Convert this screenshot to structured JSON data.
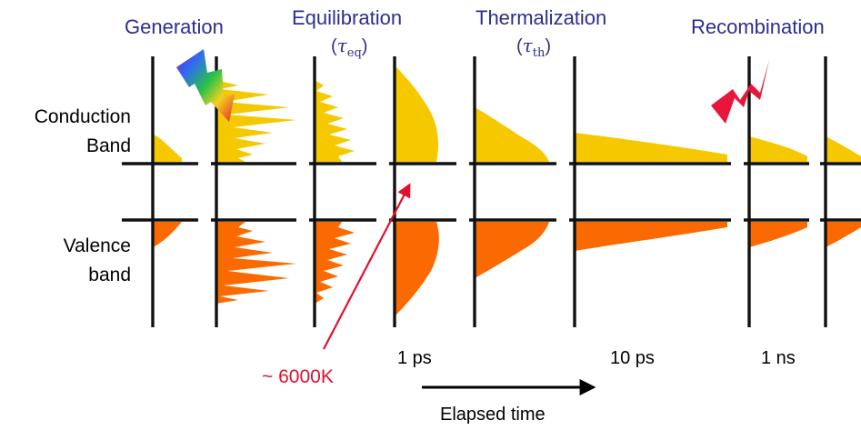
{
  "stages": {
    "generation": "Generation",
    "equilibration": "Equilibration",
    "equilibration_tau": "(τeq)",
    "thermalization": "Thermalization",
    "thermalization_tau": "(τth)",
    "recombination": "Recombination"
  },
  "bands": {
    "conduction_1": "Conduction",
    "conduction_2": "Band",
    "valence_1": "Valence",
    "valence_2": "band"
  },
  "times": {
    "t1": "1 ps",
    "t2": "10 ps",
    "t3": "1 ns"
  },
  "temperature_label": "~ 6000K",
  "elapsed_label": "Elapsed time",
  "colors": {
    "stage_text": "#2e2d8f",
    "conduction_fill": "#f5c800",
    "valence_fill": "#fb6a00",
    "arrow_red": "#e0102f",
    "axis": "#111111"
  }
}
